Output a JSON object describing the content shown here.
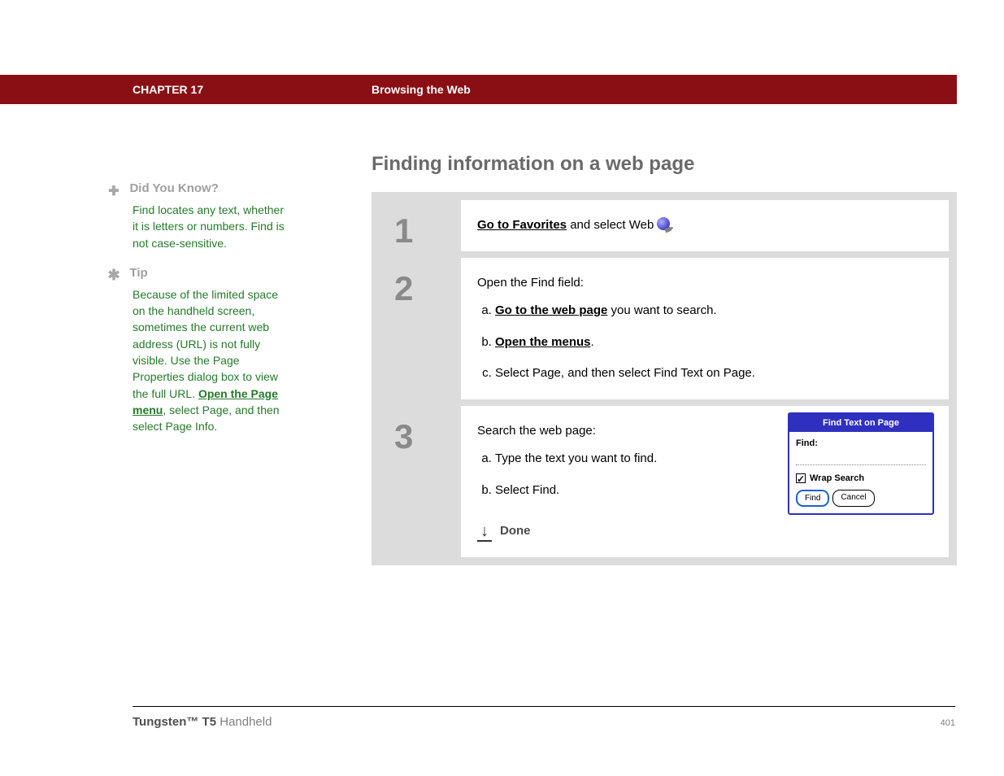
{
  "header": {
    "chapter": "CHAPTER 17",
    "title": "Browsing the Web"
  },
  "sidebar": {
    "didyouknow": {
      "heading": "Did You Know?",
      "body": "Find locates any text, whether it is letters or numbers. Find is not case-sensitive."
    },
    "tip": {
      "heading": "Tip",
      "body_pre": "Because of the limited space on the handheld screen, sometimes the current web address (URL) is not fully visible. Use the Page Properties dialog box to view the full URL. ",
      "link": "Open the Page menu",
      "body_post": ", select Page, and then select Page Info."
    }
  },
  "section_title": "Finding information on a web page",
  "steps": {
    "s1": {
      "num": "1",
      "link": "Go to Favorites",
      "rest": " and select Web ",
      "period": "."
    },
    "s2": {
      "num": "2",
      "intro": "Open the Find field:",
      "a_link": "Go to the web page",
      "a_rest": " you want to search.",
      "b_link": "Open the menus",
      "b_period": ".",
      "c": "Select Page, and then select Find Text on Page."
    },
    "s3": {
      "num": "3",
      "intro": "Search the web page:",
      "a": "Type the text you want to find.",
      "b": "Select Find.",
      "done": "Done"
    }
  },
  "dialog": {
    "title": "Find Text on Page",
    "find_label": "Find:",
    "wrap_label": "Wrap Search",
    "find_btn": "Find",
    "cancel_btn": "Cancel"
  },
  "footer": {
    "product_bold": "Tungsten™ T5",
    "product_rest": " Handheld",
    "page": "401"
  }
}
